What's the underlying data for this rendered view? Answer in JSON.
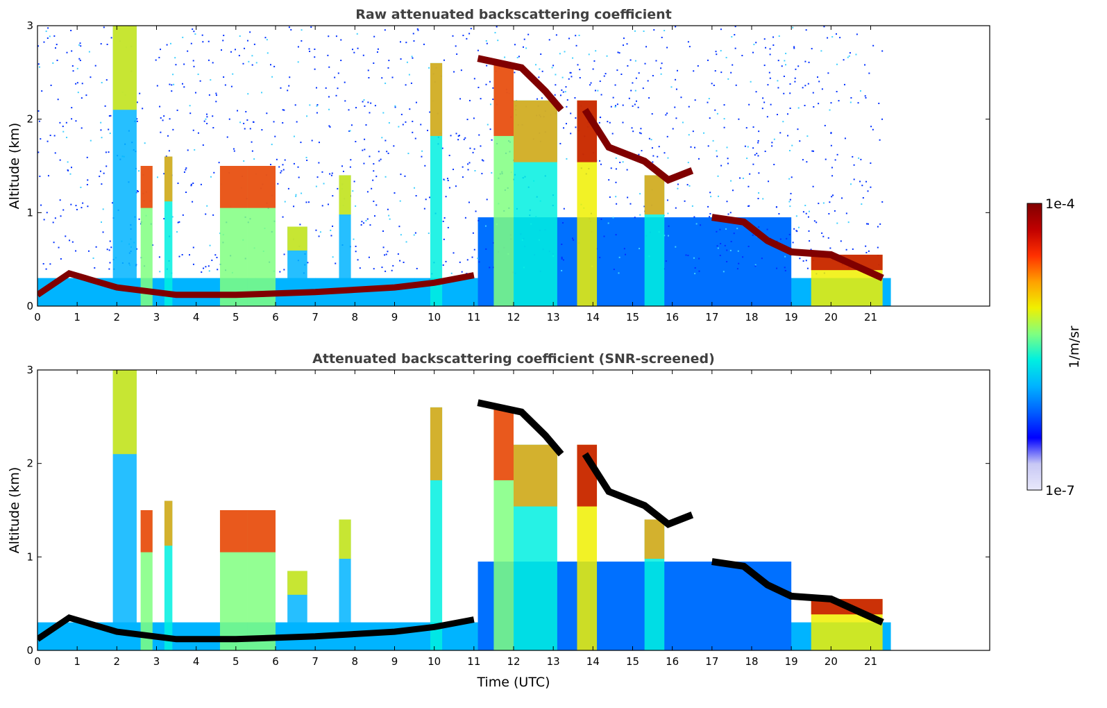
{
  "chart_data": [
    {
      "type": "heatmap",
      "title": "Raw attenuated backscattering coefficient",
      "xlabel": "",
      "ylabel": "Altitude (km)",
      "xlim": [
        0,
        24
      ],
      "ylim": [
        0,
        3
      ],
      "xticks": [
        "0",
        "1",
        "2",
        "3",
        "4",
        "5",
        "6",
        "7",
        "8",
        "9",
        "10",
        "11",
        "12",
        "13",
        "14",
        "15",
        "16",
        "17",
        "18",
        "19",
        "20",
        "21"
      ],
      "yticks": [
        "0",
        "1",
        "2",
        "3"
      ],
      "data_end_time": 21.3,
      "features": [
        {
          "name": "boundary-layer-aerosol",
          "altitude_km": [
            0.1,
            0.4
          ],
          "time": [
            0,
            11.1
          ]
        },
        {
          "name": "cloud-layer",
          "altitude_km": [
            2.1,
            2.65
          ],
          "time": [
            11.1,
            13.2
          ]
        },
        {
          "name": "cloud-layer",
          "altitude_km": [
            1.3,
            2.2
          ],
          "time": [
            13.8,
            16.5
          ]
        },
        {
          "name": "cloud-layer",
          "altitude_km": [
            0.4,
            1.1
          ],
          "time": [
            17.0,
            21.3
          ]
        }
      ]
    },
    {
      "type": "heatmap",
      "title": "Attenuated backscattering coefficient (SNR-screened)",
      "xlabel": "Time (UTC)",
      "ylabel": "Altitude (km)",
      "xlim": [
        0,
        24
      ],
      "ylim": [
        0,
        3
      ],
      "xticks": [
        "0",
        "1",
        "2",
        "3",
        "4",
        "5",
        "6",
        "7",
        "8",
        "9",
        "10",
        "11",
        "12",
        "13",
        "14",
        "15",
        "16",
        "17",
        "18",
        "19",
        "20",
        "21"
      ],
      "yticks": [
        "0",
        "1",
        "2",
        "3"
      ],
      "data_end_time": 21.3
    }
  ],
  "colorbar": {
    "min_label": "1e-7",
    "max_label": "1e-4",
    "unit_label": "1/m/sr",
    "colors": [
      "#e8e8fa",
      "#c8c8f5",
      "#0000ff",
      "#0060ff",
      "#00b4ff",
      "#00f0e0",
      "#80ff80",
      "#f0f000",
      "#ffa000",
      "#ff3000",
      "#c00000",
      "#800000"
    ]
  }
}
